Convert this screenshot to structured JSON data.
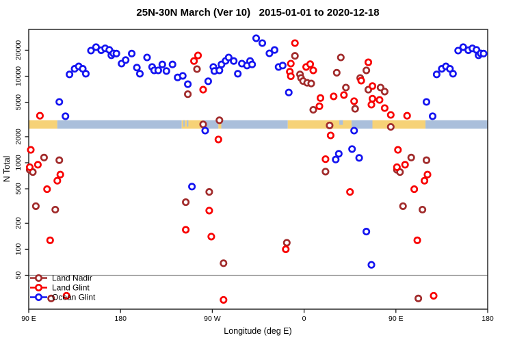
{
  "title": "25N-30N March (Ver 10)   2015-01-01 to 2020-12-18",
  "colors": {
    "land_nadir": "#A12B2B",
    "land_glint": "#F80000",
    "ocean_glint": "#1414F0",
    "band_land": "#F6D277",
    "band_ocean": "#AABFDB",
    "marker_fill": "#FFFFFF",
    "reference_line": "#909090",
    "axis": "#1a1a1a"
  },
  "legend": {
    "items": [
      {
        "label": "Land Nadir",
        "color_key": "land_nadir"
      },
      {
        "label": "Land Glint",
        "color_key": "land_glint"
      },
      {
        "label": "Ocean Glint",
        "color_key": "ocean_glint"
      }
    ]
  },
  "chart_data": {
    "type": "scatter",
    "title": "25N-30N March (Ver 10)   2015-01-01 to 2020-12-18",
    "xlabel": "Longitude (deg E)",
    "ylabel": "N Total",
    "x_axis": {
      "note": "axis spans 450 deg: longitudes 90E..180E are plotted twice (left and right ends)",
      "u_min": 90,
      "u_max": 540,
      "duplicate_lon_range": [
        90,
        180
      ],
      "ticks": [
        {
          "u": 90,
          "label": "90 E"
        },
        {
          "u": 180,
          "label": "180"
        },
        {
          "u": 270,
          "label": "90 W"
        },
        {
          "u": 360,
          "label": "0"
        },
        {
          "u": 450,
          "label": "90 E"
        },
        {
          "u": 540,
          "label": "180"
        }
      ]
    },
    "y_axis": {
      "scale": "log",
      "domain": [
        20.3,
        34800
      ],
      "ticks": [
        {
          "value": 20000,
          "label": "20000"
        },
        {
          "value": 10000,
          "label": "10000"
        },
        {
          "value": 5000,
          "label": "5000"
        },
        {
          "value": 2000,
          "label": "2000"
        },
        {
          "value": 1000,
          "label": "1000"
        },
        {
          "value": 500,
          "label": "500"
        },
        {
          "value": 200,
          "label": "200"
        },
        {
          "value": 100,
          "label": "100"
        },
        {
          "value": 50,
          "label": "50"
        }
      ]
    },
    "reference_line_n": 50,
    "band": {
      "description": "land/ocean surface strip along 25N-30N",
      "n_top": 3100,
      "n_bottom": 2480,
      "segments": [
        {
          "u0": 90,
          "u1": 118,
          "surface": "land"
        },
        {
          "u0": 118,
          "u1": 240,
          "surface": "ocean"
        },
        {
          "u0": 240,
          "u1": 260.5,
          "surface": "land"
        },
        {
          "u0": 260.5,
          "u1": 276,
          "surface": "ocean"
        },
        {
          "u0": 276,
          "u1": 278.8,
          "surface": "land"
        },
        {
          "u0": 278.8,
          "u1": 344,
          "surface": "ocean"
        },
        {
          "u0": 344,
          "u1": 406.5,
          "surface": "land"
        },
        {
          "u0": 406.5,
          "u1": 427,
          "surface": "ocean"
        },
        {
          "u0": 427,
          "u1": 479,
          "surface": "land"
        },
        {
          "u0": 479,
          "u1": 540,
          "surface": "ocean"
        }
      ],
      "inlets": [
        {
          "u0": 241.5,
          "u1": 243,
          "depth_frac": 0.75
        },
        {
          "u0": 245,
          "u1": 246.5,
          "depth_frac": 0.75
        },
        {
          "u0": 394.5,
          "u1": 398,
          "depth_frac": 0.55
        }
      ]
    },
    "series": [
      {
        "name": "Land Nadir",
        "color_key": "land_nadir",
        "points": [
          [
            91,
            830
          ],
          [
            94,
            780
          ],
          [
            105,
            1150
          ],
          [
            120,
            1070
          ],
          [
            97,
            315
          ],
          [
            116,
            287
          ],
          [
            112,
            27
          ],
          [
            -114,
            6200
          ],
          [
            -105,
            12100
          ],
          [
            -99,
            2780
          ],
          [
            -93,
            460
          ],
          [
            -83,
            3100
          ],
          [
            -116,
            350
          ],
          [
            -79,
            69
          ],
          [
            -17,
            119
          ],
          [
            -9,
            17200
          ],
          [
            -4,
            10500
          ],
          [
            -3,
            9550
          ],
          [
            -1,
            8800
          ],
          [
            3,
            8400
          ],
          [
            7,
            8250
          ],
          [
            9,
            4100
          ],
          [
            21,
            790
          ],
          [
            25,
            2700
          ],
          [
            32,
            11000
          ],
          [
            36,
            16500
          ],
          [
            41,
            7400
          ],
          [
            50,
            4200
          ],
          [
            55,
            9550
          ],
          [
            61,
            11700
          ],
          [
            63,
            7000
          ],
          [
            75,
            7400
          ],
          [
            79,
            6650
          ],
          [
            85,
            2600
          ]
        ]
      },
      {
        "name": "Land Glint",
        "color_key": "land_glint",
        "points": [
          [
            92,
            1410
          ],
          [
            91,
            890
          ],
          [
            99,
            950
          ],
          [
            101,
            3500
          ],
          [
            108,
            495
          ],
          [
            111,
            127
          ],
          [
            118,
            620
          ],
          [
            121,
            730
          ],
          [
            127,
            29
          ],
          [
            -116,
            168
          ],
          [
            -108,
            15000
          ],
          [
            -104,
            17400
          ],
          [
            -99,
            7000
          ],
          [
            -93,
            280
          ],
          [
            -91,
            140
          ],
          [
            -84,
            1860
          ],
          [
            -79,
            26
          ],
          [
            -18,
            100
          ],
          [
            -14,
            11300
          ],
          [
            -13,
            14000
          ],
          [
            -13,
            10000
          ],
          [
            -9,
            24200
          ],
          [
            2,
            12800
          ],
          [
            6,
            13800
          ],
          [
            9,
            11700
          ],
          [
            15,
            4500
          ],
          [
            16,
            5600
          ],
          [
            21,
            1100
          ],
          [
            26,
            2070
          ],
          [
            29,
            5850
          ],
          [
            39,
            6070
          ],
          [
            45,
            460
          ],
          [
            49,
            5150
          ],
          [
            56,
            8900
          ],
          [
            63,
            14500
          ],
          [
            66,
            4700
          ],
          [
            67,
            7700
          ],
          [
            67,
            5500
          ],
          [
            74,
            5330
          ],
          [
            79,
            4290
          ],
          [
            85,
            3575
          ]
        ]
      },
      {
        "name": "Ocean Glint",
        "color_key": "ocean_glint",
        "points": [
          [
            120,
            5050
          ],
          [
            126,
            3450
          ],
          [
            130,
            10500
          ],
          [
            135,
            12200
          ],
          [
            139,
            13000
          ],
          [
            143,
            12200
          ],
          [
            146,
            10700
          ],
          [
            151,
            19800
          ],
          [
            156,
            21700
          ],
          [
            161,
            20000
          ],
          [
            165,
            21000
          ],
          [
            169,
            20200
          ],
          [
            171,
            17500
          ],
          [
            173,
            18400
          ],
          [
            176,
            18300
          ],
          [
            -179,
            14000
          ],
          [
            -175,
            15400
          ],
          [
            -169,
            18300
          ],
          [
            -164,
            12600
          ],
          [
            -161,
            10700
          ],
          [
            -154,
            16500
          ],
          [
            -149,
            12800
          ],
          [
            -147,
            11700
          ],
          [
            -143,
            11700
          ],
          [
            -139,
            13700
          ],
          [
            -135,
            11500
          ],
          [
            -129,
            13700
          ],
          [
            -124,
            9700
          ],
          [
            -119,
            10100
          ],
          [
            -114,
            8100
          ],
          [
            -110,
            530
          ],
          [
            -97,
            2350
          ],
          [
            -94,
            8750
          ],
          [
            -89,
            12800
          ],
          [
            -88,
            11500
          ],
          [
            -83,
            11700
          ],
          [
            -81,
            13700
          ],
          [
            -77,
            15050
          ],
          [
            -74,
            16500
          ],
          [
            -69,
            15000
          ],
          [
            -65,
            10700
          ],
          [
            -61,
            14000
          ],
          [
            -56,
            13300
          ],
          [
            -53,
            15000
          ],
          [
            -51,
            13700
          ],
          [
            -47,
            27500
          ],
          [
            -41,
            24200
          ],
          [
            -34,
            18400
          ],
          [
            -29,
            20100
          ],
          [
            -25,
            12800
          ],
          [
            -21,
            13300
          ],
          [
            -15,
            6500
          ],
          [
            31,
            1090
          ],
          [
            34,
            1270
          ],
          [
            47,
            1440
          ],
          [
            49,
            2350
          ],
          [
            54,
            1140
          ],
          [
            61,
            160
          ],
          [
            66,
            66
          ]
        ]
      }
    ]
  }
}
